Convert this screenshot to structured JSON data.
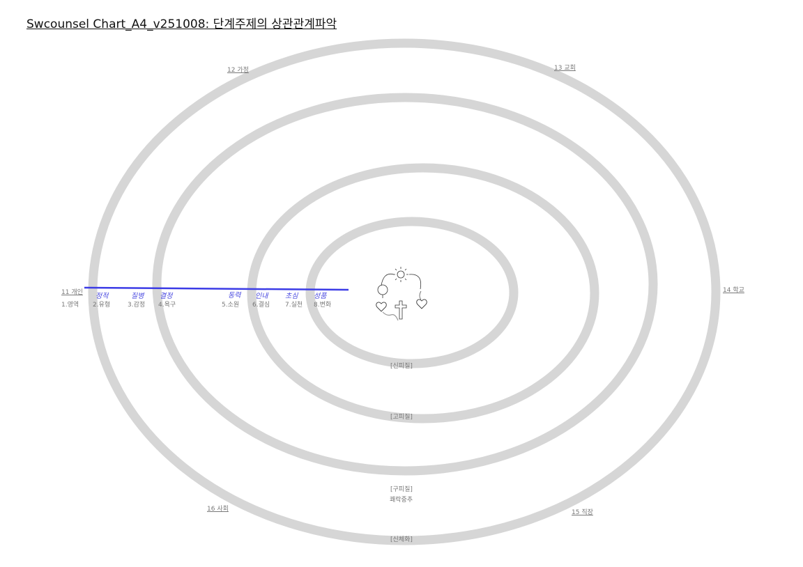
{
  "title": "Swcounsel Chart_A4_v251008: 단계주제의 상관관계파악",
  "domains": {
    "individual": "11 개인",
    "family": "12 가정",
    "church": "13 교회",
    "school": "14 학교",
    "workplace": "15 직장",
    "society": "16 사회"
  },
  "layers": {
    "neocortex": "[신피질]",
    "paleocortex": "[고피질]",
    "archicortex": "[구피질]",
    "pleasure_center": "쾌락중추",
    "somatization": "[신체화]"
  },
  "steps": [
    "1.영역",
    "2.유형",
    "3.감정",
    "4.욕구",
    "5.소원",
    "6.결심",
    "7.실천",
    "8.변화"
  ],
  "handwritten": [
    "정적",
    "질병",
    "결정",
    "동력",
    "인내",
    "초심",
    "성품"
  ],
  "colors": {
    "ring": "#d6d6d6",
    "annotation_line": "#3b3be6"
  }
}
